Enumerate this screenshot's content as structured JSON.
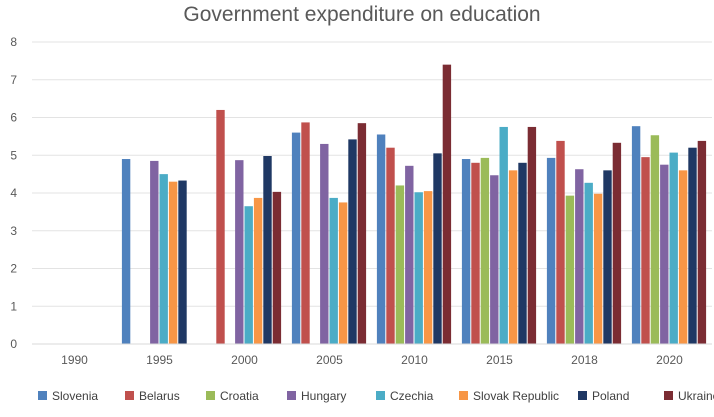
{
  "chart_data": {
    "type": "bar",
    "title": "Government expenditure on education",
    "xlabel": "",
    "ylabel": "",
    "ylim": [
      0,
      8
    ],
    "yticks": [
      "0",
      "1",
      "2",
      "3",
      "4",
      "5",
      "6",
      "7",
      "8"
    ],
    "grid": true,
    "legend": "bottom",
    "categories": [
      "1990",
      "1995",
      "2000",
      "2005",
      "2010",
      "2015",
      "2018",
      "2020"
    ],
    "series": [
      {
        "name": "Slovenia",
        "color": "#4F81BD",
        "values": [
          null,
          4.9,
          null,
          5.6,
          5.55,
          4.9,
          4.93,
          5.77
        ]
      },
      {
        "name": "Belarus",
        "color": "#C0504D",
        "values": [
          null,
          null,
          6.2,
          5.87,
          5.2,
          4.8,
          5.38,
          4.95
        ]
      },
      {
        "name": "Croatia",
        "color": "#9BBB59",
        "values": [
          null,
          null,
          null,
          null,
          4.2,
          4.93,
          3.93,
          5.53
        ]
      },
      {
        "name": "Hungary",
        "color": "#8064A2",
        "values": [
          null,
          4.85,
          4.87,
          5.3,
          4.72,
          4.47,
          4.63,
          4.75
        ]
      },
      {
        "name": "Czechia",
        "color": "#4BACC6",
        "values": [
          null,
          4.5,
          3.65,
          3.87,
          4.02,
          5.75,
          4.27,
          5.07
        ]
      },
      {
        "name": "Slovak Republic",
        "color": "#F79646",
        "values": [
          null,
          4.3,
          3.87,
          3.75,
          4.05,
          4.6,
          3.98,
          4.6
        ]
      },
      {
        "name": "Poland",
        "color": "#1F3864",
        "values": [
          null,
          4.33,
          4.98,
          5.42,
          5.05,
          4.8,
          4.6,
          5.2
        ]
      },
      {
        "name": "Ukraine",
        "color": "#7B2C33",
        "values": [
          null,
          null,
          4.03,
          5.85,
          7.4,
          5.75,
          5.33,
          5.38
        ]
      }
    ]
  }
}
